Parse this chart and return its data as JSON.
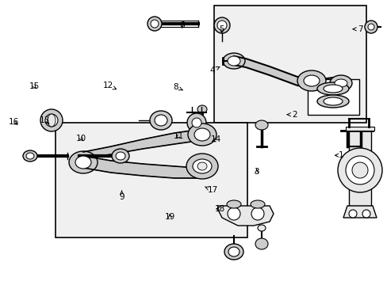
{
  "bg_color": "#ffffff",
  "fig_width": 4.89,
  "fig_height": 3.6,
  "dpi": 100,
  "label_fontsize": 7.5,
  "line_color": "#000000",
  "gray_light": "#cccccc",
  "gray_mid": "#999999",
  "gray_dark": "#555555",
  "gray_fill": "#e8e8e8",
  "box_fill": "#eeeeee",
  "label_positions": {
    "1": [
      0.862,
      0.455,
      0.9,
      0.455
    ],
    "2": [
      0.74,
      0.595,
      0.72,
      0.595
    ],
    "3": [
      0.66,
      0.398,
      0.66,
      0.415
    ],
    "4": [
      0.548,
      0.75,
      0.57,
      0.77
    ],
    "5": [
      0.57,
      0.89,
      0.57,
      0.87
    ],
    "6": [
      0.47,
      0.91,
      0.47,
      0.89
    ],
    "7": [
      0.92,
      0.895,
      0.9,
      0.89
    ],
    "8": [
      0.445,
      0.7,
      0.46,
      0.69
    ],
    "9": [
      0.31,
      0.31,
      0.31,
      0.33
    ],
    "10": [
      0.21,
      0.51,
      0.22,
      0.495
    ],
    "11": [
      0.46,
      0.525,
      0.448,
      0.51
    ],
    "12": [
      0.278,
      0.7,
      0.3,
      0.69
    ],
    "13": [
      0.115,
      0.58,
      0.13,
      0.565
    ],
    "14": [
      0.56,
      0.51,
      0.54,
      0.5
    ],
    "15": [
      0.088,
      0.7,
      0.098,
      0.685
    ],
    "16": [
      0.035,
      0.575,
      0.048,
      0.56
    ],
    "17": [
      0.548,
      0.335,
      0.53,
      0.348
    ],
    "18": [
      0.57,
      0.265,
      0.552,
      0.27
    ],
    "19": [
      0.438,
      0.24,
      0.438,
      0.258
    ]
  }
}
